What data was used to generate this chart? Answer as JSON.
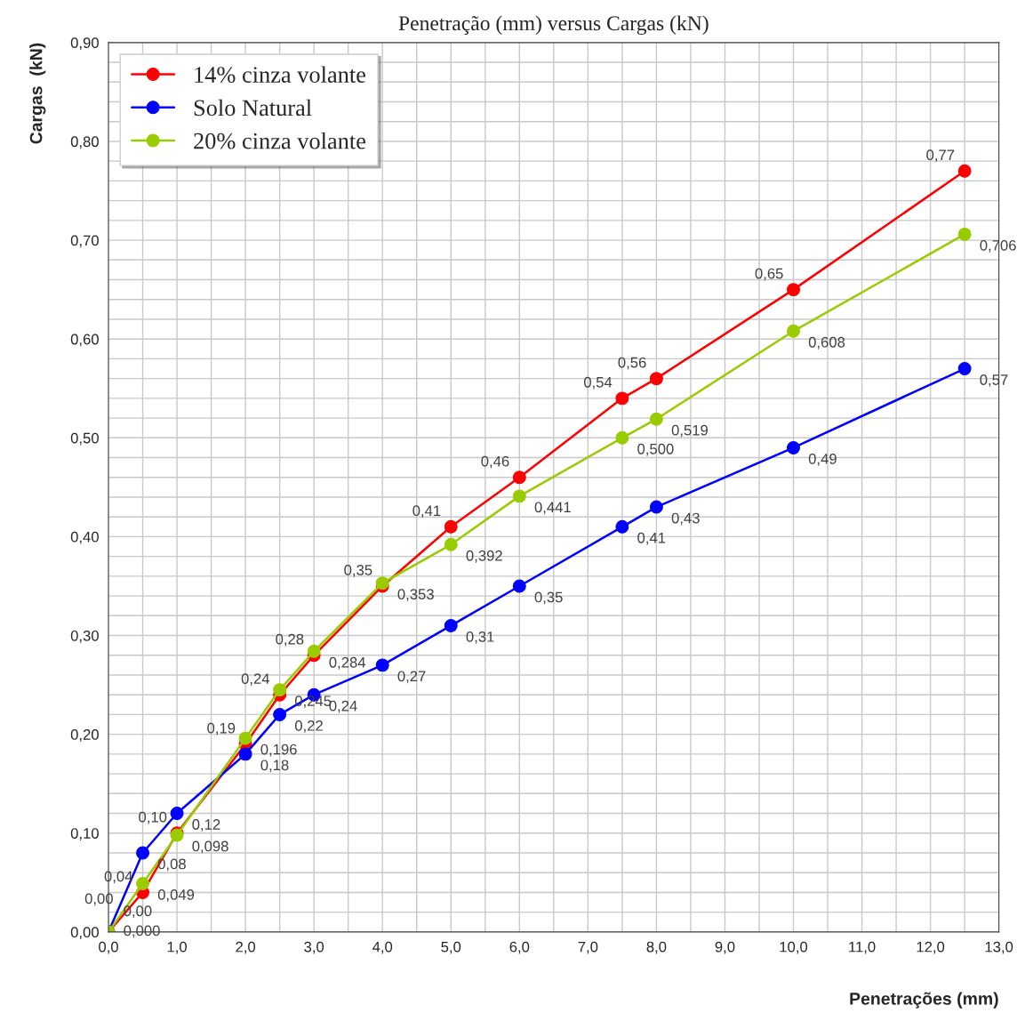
{
  "chart_data": {
    "type": "line",
    "title": "Penetração (mm) versus Cargas (kN)",
    "xlabel": "Penetrações (mm)",
    "ylabel": "Cargas  (kN)",
    "x": [
      0,
      0.5,
      1,
      2,
      2.5,
      3,
      4,
      5,
      6,
      7.5,
      8,
      10,
      12.5
    ],
    "series": [
      {
        "name": "14% cinza volante",
        "color": "#ff0000",
        "values": [
          0,
          0.04,
          0.1,
          0.19,
          0.24,
          0.28,
          0.35,
          0.41,
          0.46,
          0.54,
          0.56,
          0.65,
          0.77
        ],
        "value_labels": [
          "0,00",
          "0,04",
          "0,10",
          "0,19",
          "0,24",
          "0,28",
          "0,35",
          "0,41",
          "0,46",
          "0,54",
          "0,56",
          "0,65",
          "0,77"
        ]
      },
      {
        "name": "Solo Natural",
        "color": "#0000ff",
        "values": [
          0,
          0.08,
          0.12,
          0.18,
          0.22,
          0.24,
          0.27,
          0.31,
          0.35,
          0.41,
          0.43,
          0.49,
          0.57
        ],
        "value_labels": [
          "0,00",
          "0,08",
          "0,12",
          "0,18",
          "0,22",
          "0,24",
          "0,27",
          "0,31",
          "0,35",
          "0,41",
          "0,43",
          "0,49",
          "0,57"
        ]
      },
      {
        "name": "20% cinza volante",
        "color": "#99cc00",
        "values": [
          0,
          0.049,
          0.098,
          0.196,
          0.245,
          0.284,
          0.353,
          0.392,
          0.441,
          0.5,
          0.519,
          0.608,
          0.706
        ],
        "value_labels": [
          "0,000",
          "0,049",
          "0,098",
          "0,196",
          "0,245",
          "0,284",
          "0,353",
          "0,392",
          "0,441",
          "0,500",
          "0,519",
          "0,608",
          "0,706"
        ]
      }
    ],
    "xlim": [
      0,
      13
    ],
    "ylim": [
      0,
      0.9
    ],
    "xticks": [
      {
        "value": 0,
        "label": "0,0"
      },
      {
        "value": 1,
        "label": "1,0"
      },
      {
        "value": 2,
        "label": "2,0"
      },
      {
        "value": 3,
        "label": "3,0"
      },
      {
        "value": 4,
        "label": "4,0"
      },
      {
        "value": 5,
        "label": "5,0"
      },
      {
        "value": 6,
        "label": "6,0"
      },
      {
        "value": 7,
        "label": "7,0"
      },
      {
        "value": 8,
        "label": "8,0"
      },
      {
        "value": 9,
        "label": "9,0"
      },
      {
        "value": 10,
        "label": "10,0"
      },
      {
        "value": 11,
        "label": "11,0"
      },
      {
        "value": 12,
        "label": "12,0"
      },
      {
        "value": 13,
        "label": "13,0"
      }
    ],
    "yticks": [
      {
        "value": 0,
        "label": "0,00"
      },
      {
        "value": 0.1,
        "label": "0,10"
      },
      {
        "value": 0.2,
        "label": "0,20"
      },
      {
        "value": 0.3,
        "label": "0,30"
      },
      {
        "value": 0.4,
        "label": "0,40"
      },
      {
        "value": 0.5,
        "label": "0,50"
      },
      {
        "value": 0.6,
        "label": "0,60"
      },
      {
        "value": 0.7,
        "label": "0,70"
      },
      {
        "value": 0.8,
        "label": "0,80"
      },
      {
        "value": 0.9,
        "label": "0,90"
      }
    ],
    "grid": true,
    "legend": "top left",
    "marker": "circle",
    "line_style": "solid"
  }
}
